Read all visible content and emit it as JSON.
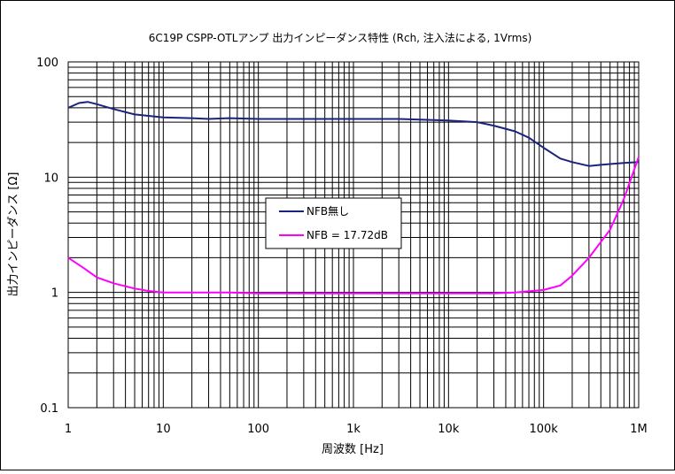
{
  "chart_data": {
    "type": "line",
    "title": "6C19P CSPP-OTLアンプ 出力インピーダンス特性 (Rch, 注入法による, 1Vrms)",
    "xlabel": "周波数 [Hz]",
    "ylabel": "出力インピーダンス [Ω]",
    "x_scale": "log",
    "y_scale": "log",
    "xlim": [
      1,
      1000000
    ],
    "ylim": [
      0.1,
      100
    ],
    "grid": true,
    "legend_position": "center-left",
    "x_tick_values": [
      1,
      10,
      100,
      1000,
      10000,
      100000,
      1000000
    ],
    "x_tick_labels": [
      "1",
      "10",
      "100",
      "1k",
      "10k",
      "100k",
      "1M"
    ],
    "y_tick_values": [
      0.1,
      1,
      10,
      100
    ],
    "y_tick_labels": [
      "0.1",
      "1",
      "10",
      "100"
    ],
    "series": [
      {
        "name": "NFB無し",
        "color": "#1a237e",
        "points": [
          [
            1,
            40
          ],
          [
            1.3,
            44
          ],
          [
            1.6,
            45
          ],
          [
            2,
            43
          ],
          [
            3,
            39
          ],
          [
            5,
            35
          ],
          [
            10,
            33
          ],
          [
            20,
            32.5
          ],
          [
            30,
            32
          ],
          [
            50,
            32.5
          ],
          [
            100,
            32
          ],
          [
            300,
            32
          ],
          [
            1000,
            32
          ],
          [
            3000,
            32
          ],
          [
            10000,
            31
          ],
          [
            20000,
            30
          ],
          [
            30000,
            28
          ],
          [
            50000,
            25
          ],
          [
            70000,
            22
          ],
          [
            100000,
            18
          ],
          [
            150000,
            14.5
          ],
          [
            200000,
            13.5
          ],
          [
            300000,
            12.5
          ],
          [
            400000,
            12.8
          ],
          [
            500000,
            13
          ],
          [
            700000,
            13.3
          ],
          [
            1000000,
            13.5
          ]
        ]
      },
      {
        "name": "NFB = 17.72dB",
        "color": "#ff00ff",
        "points": [
          [
            1,
            2
          ],
          [
            1.5,
            1.6
          ],
          [
            2,
            1.35
          ],
          [
            3,
            1.2
          ],
          [
            5,
            1.08
          ],
          [
            7,
            1.03
          ],
          [
            10,
            1.0
          ],
          [
            20,
            1.0
          ],
          [
            50,
            1.0
          ],
          [
            100,
            0.98
          ],
          [
            1000,
            0.98
          ],
          [
            10000,
            0.98
          ],
          [
            30000,
            0.98
          ],
          [
            50000,
            1.0
          ],
          [
            100000,
            1.05
          ],
          [
            150000,
            1.15
          ],
          [
            200000,
            1.4
          ],
          [
            300000,
            2.0
          ],
          [
            500000,
            3.5
          ],
          [
            700000,
            6.5
          ],
          [
            1000000,
            15
          ]
        ]
      }
    ]
  }
}
